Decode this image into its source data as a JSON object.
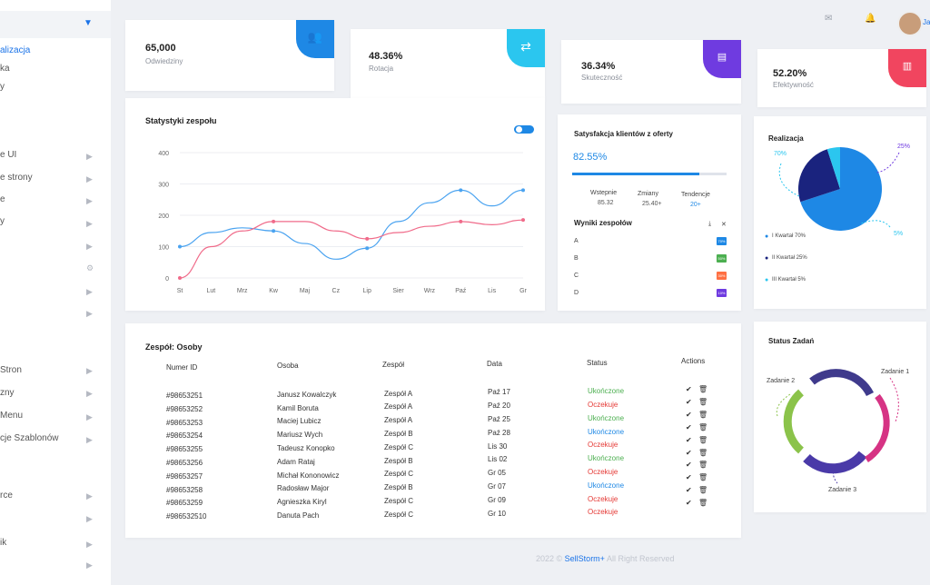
{
  "sidebar": {
    "items": [
      {
        "label": "alizacja",
        "active": true
      },
      {
        "label": "ka"
      },
      {
        "label": "y"
      },
      {
        "label": "e UI"
      },
      {
        "label": "e strony"
      },
      {
        "label": "e"
      },
      {
        "label": "y"
      },
      {
        "label": "Stron"
      },
      {
        "label": "zny"
      },
      {
        "label": "Menu"
      },
      {
        "label": "cje Szablonów"
      },
      {
        "label": "rce"
      },
      {
        "label": "ik"
      }
    ]
  },
  "header": {
    "user": "Ja"
  },
  "stats": [
    {
      "value": "65,000",
      "label": "Odwiedziny",
      "icon": "users-icon",
      "color": "#1e88e5"
    },
    {
      "value": "48.36%",
      "label": "Rotacja",
      "icon": "sync-icon",
      "color": "#2bc6ef"
    },
    {
      "value": "36.34%",
      "label": "Skuteczność",
      "icon": "id-card-icon",
      "color": "#6f3be0"
    },
    {
      "value": "52.20%",
      "label": "Efektywność",
      "icon": "bar-chart-icon",
      "color": "#f1455f"
    }
  ],
  "team_stats": {
    "title": "Statystyki zespołu"
  },
  "chart_data": {
    "type": "line",
    "categories": [
      "St",
      "Lut",
      "Mrz",
      "Kw",
      "Maj",
      "Cz",
      "Lip",
      "Sier",
      "Wrz",
      "Paź",
      "Lis",
      "Gr"
    ],
    "yticks": [
      "0",
      "100",
      "200",
      "300",
      "400"
    ],
    "ylim": [
      0,
      400
    ],
    "series": [
      {
        "values": [
          100,
          145,
          160,
          150,
          110,
          60,
          95,
          180,
          240,
          280,
          230,
          280
        ],
        "color": "#4aa3f0"
      },
      {
        "values": [
          0,
          100,
          150,
          180,
          180,
          150,
          125,
          145,
          165,
          180,
          170,
          185
        ],
        "color": "#f06b8a"
      }
    ]
  },
  "satisfaction": {
    "title": "Satysfakcja klientów z oferty",
    "value": "82.55%",
    "progress": 0.8255,
    "cols": [
      {
        "label": "Wstepnie",
        "value": "85.32"
      },
      {
        "label": "Zmiany",
        "value": "25.40+"
      },
      {
        "label": "Tendencje",
        "value": "20+"
      }
    ]
  },
  "team_results": {
    "title": "Wyniki zespołów",
    "rows": [
      {
        "label": "A",
        "badge": "70%",
        "color": "#1e88e5"
      },
      {
        "label": "B",
        "badge": "50%",
        "color": "#4caf50"
      },
      {
        "label": "C",
        "badge": "30%",
        "color": "#ff7043"
      },
      {
        "label": "D",
        "badge": "10%",
        "color": "#6f3be0"
      }
    ]
  },
  "realization": {
    "title": "Realizacja",
    "slices": [
      {
        "label": "I Kwartał 70%",
        "value": 70,
        "color": "#1e88e5"
      },
      {
        "label": "II Kwartał 25%",
        "value": 25,
        "color": "#1a237e"
      },
      {
        "label": "III Kwartał 5%",
        "value": 5,
        "color": "#2bc6ef"
      }
    ],
    "callouts": [
      "70%",
      "25%",
      "5%"
    ]
  },
  "task_status": {
    "title": "Status Zadań",
    "labels": [
      "Zadanie 2",
      "Zadanie 1",
      "Zadanie 3"
    ]
  },
  "team": {
    "title": "Zespół: Osoby",
    "headers": [
      "Numer ID",
      "Osoba",
      "Zespół",
      "Data",
      "Status",
      "Actions"
    ],
    "rows": [
      {
        "id": "#98653251",
        "person": "Janusz Kowalczyk",
        "team": "Zespół A",
        "date": "Paź 17",
        "status": "Ukończone",
        "color": "#4caf50"
      },
      {
        "id": "#98653252",
        "person": "Kamil Boruta",
        "team": "Zespół A",
        "date": "Paź 20",
        "status": "Oczekuje",
        "color": "#e53935"
      },
      {
        "id": "#98653253",
        "person": "Maciej Lubicz",
        "team": "Zespół A",
        "date": "Paź 25",
        "status": "Ukończone",
        "color": "#4caf50"
      },
      {
        "id": "#98653254",
        "person": "Mariusz Wych",
        "team": "Zespół B",
        "date": "Paź 28",
        "status": "Ukończone",
        "color": "#1e88e5"
      },
      {
        "id": "#98653255",
        "person": "Tadeusz Konopko",
        "team": "Zespół C",
        "date": "Lis 30",
        "status": "Oczekuje",
        "color": "#e53935"
      },
      {
        "id": "#98653256",
        "person": "Adam Rataj",
        "team": "Zespół B",
        "date": "Lis 02",
        "status": "Ukończone",
        "color": "#4caf50"
      },
      {
        "id": "#98653257",
        "person": "Michał Kononowicz",
        "team": "Zespół C",
        "date": "Gr 05",
        "status": "Oczekuje",
        "color": "#e53935"
      },
      {
        "id": "#98653258",
        "person": "Radosław Major",
        "team": "Zespół B",
        "date": "Gr 07",
        "status": "Ukończone",
        "color": "#1e88e5"
      },
      {
        "id": "#98653259",
        "person": "Agnieszka Kiryl",
        "team": "Zespół C",
        "date": "Gr 09",
        "status": "Oczekuje",
        "color": "#e53935"
      },
      {
        "id": "#986532510",
        "person": "Danuta Pach",
        "team": "Zespół C",
        "date": "Gr 10",
        "status": "Oczekuje",
        "color": "#e53935"
      }
    ]
  },
  "footer": {
    "prefix": "2022 ©",
    "brand": "SellStorm+",
    "suffix": "All Right Reserved"
  }
}
